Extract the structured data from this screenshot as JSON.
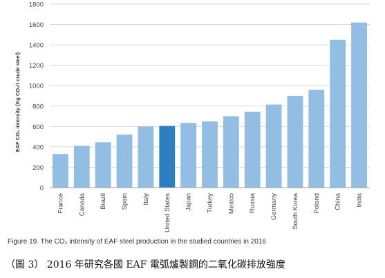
{
  "chart_data": {
    "type": "bar",
    "ylabel": "EAF CO₂ intensity (Kg CO₂/t crude steel)",
    "ylim": [
      0,
      1800
    ],
    "yticks": [
      0,
      200,
      400,
      600,
      800,
      1000,
      1200,
      1400,
      1600,
      1800
    ],
    "grid": true,
    "categories": [
      "France",
      "Canada",
      "Brazil",
      "Spain",
      "Italy",
      "United States",
      "Japan",
      "Turkey",
      "Mexico",
      "Russia",
      "Germany",
      "South Korea",
      "Poland",
      "China",
      "India"
    ],
    "values": [
      330,
      410,
      445,
      520,
      600,
      605,
      635,
      650,
      700,
      745,
      815,
      900,
      960,
      1450,
      1620
    ],
    "highlight": "United States",
    "colors": {
      "bar": "#93bee3",
      "highlight": "#2e7fc2",
      "grid": "#d9d9d9"
    }
  },
  "figure_caption": "Figure 19. The CO₂ intensity of EAF steel production in the studied countries in 2016",
  "chinese_caption": "（圖 3） 2016 年研究各國 EAF 電弧爐製鋼的二氧化碳排放強度"
}
